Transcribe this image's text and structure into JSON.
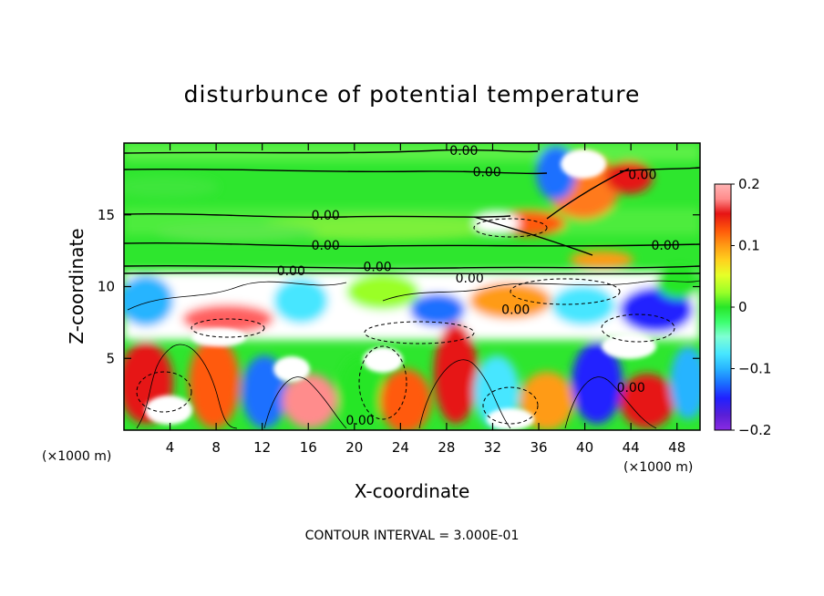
{
  "chart_data": {
    "type": "heatmap",
    "title": "disturbunce of potential temperature",
    "xlabel": "X-coordinate",
    "ylabel": "Z-coordinate",
    "x_unit_note_left": "(×1000 m)",
    "x_unit_note_right": "(×1000 m)",
    "footer": "CONTOUR INTERVAL = 3.000E-01",
    "xlim": [
      0,
      50
    ],
    "ylim": [
      0,
      20
    ],
    "x_ticks": [
      4,
      8,
      12,
      16,
      20,
      24,
      28,
      32,
      36,
      40,
      44,
      48
    ],
    "y_ticks": [
      5,
      10,
      15
    ],
    "colorbar": {
      "range": [
        -0.2,
        0.2
      ],
      "tick_values": [
        0.2,
        0.1,
        0,
        -0.1,
        -0.2
      ],
      "tick_labels": [
        "0.2",
        "0.1",
        "0",
        "−0.1",
        "−0.2"
      ],
      "colors": [
        "#8a2be2",
        "#5a1fd6",
        "#2020ff",
        "#1a6fff",
        "#28b4ff",
        "#46e6ff",
        "#7fffd4",
        "#3cff6e",
        "#28e628",
        "#9aff28",
        "#e6ff28",
        "#ffd21e",
        "#ff9b14",
        "#ff5a0a",
        "#e61414",
        "#ff8c8c",
        "#ffb4b4"
      ]
    },
    "contour_levels": [
      {
        "label": "0.00",
        "x": 29.5,
        "z": 19.5
      },
      {
        "label": "0.00",
        "x": 31.5,
        "z": 18.0
      },
      {
        "label": "0.00",
        "x": 45.0,
        "z": 17.8
      },
      {
        "label": "0.00",
        "x": 17.5,
        "z": 15.0
      },
      {
        "label": "0.00",
        "x": 17.5,
        "z": 12.9
      },
      {
        "label": "0.00",
        "x": 47.0,
        "z": 12.9
      },
      {
        "label": "0.00",
        "x": 22.0,
        "z": 11.4
      },
      {
        "label": "0.00",
        "x": 14.5,
        "z": 11.1
      },
      {
        "label": "0.00",
        "x": 30.0,
        "z": 10.6
      },
      {
        "label": "0.00",
        "x": 34.0,
        "z": 8.4
      },
      {
        "label": "0.00",
        "x": 44.0,
        "z": 3.0
      },
      {
        "label": "0.00",
        "x": 20.5,
        "z": 0.7
      }
    ]
  }
}
